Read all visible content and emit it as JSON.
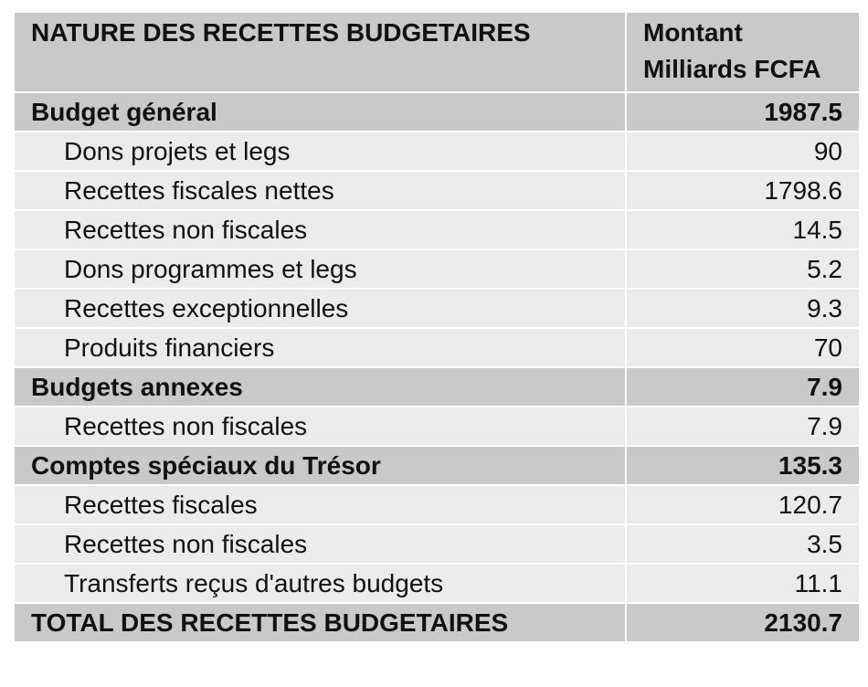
{
  "table": {
    "header": {
      "title": "NATURE DES RECETTES BUDGETAIRES",
      "amount": [
        "Montant",
        "Milliards FCFA"
      ]
    },
    "sections": [
      {
        "label": "Budget général",
        "value": "1987.5",
        "items": [
          {
            "label": "Dons projets et legs",
            "value": "90"
          },
          {
            "label": "Recettes fiscales nettes",
            "value": "1798.6"
          },
          {
            "label": "Recettes non fiscales",
            "value": "14.5"
          },
          {
            "label": "Dons programmes et legs",
            "value": "5.2"
          },
          {
            "label": "Recettes exceptionnelles",
            "value": "9.3"
          },
          {
            "label": "Produits financiers",
            "value": "70"
          }
        ]
      },
      {
        "label": "Budgets annexes",
        "value": "7.9",
        "items": [
          {
            "label": "Recettes non fiscales",
            "value": "7.9"
          }
        ]
      },
      {
        "label": "Comptes spéciaux du Trésor",
        "value": "135.3",
        "items": [
          {
            "label": "Recettes fiscales",
            "value": "120.7"
          },
          {
            "label": "Recettes non fiscales",
            "value": "3.5"
          },
          {
            "label": "Transferts reçus d'autres budgets",
            "value": "11.1"
          }
        ]
      }
    ],
    "total": {
      "label": "TOTAL DES RECETTES BUDGETAIRES",
      "value": "2130.7"
    }
  }
}
